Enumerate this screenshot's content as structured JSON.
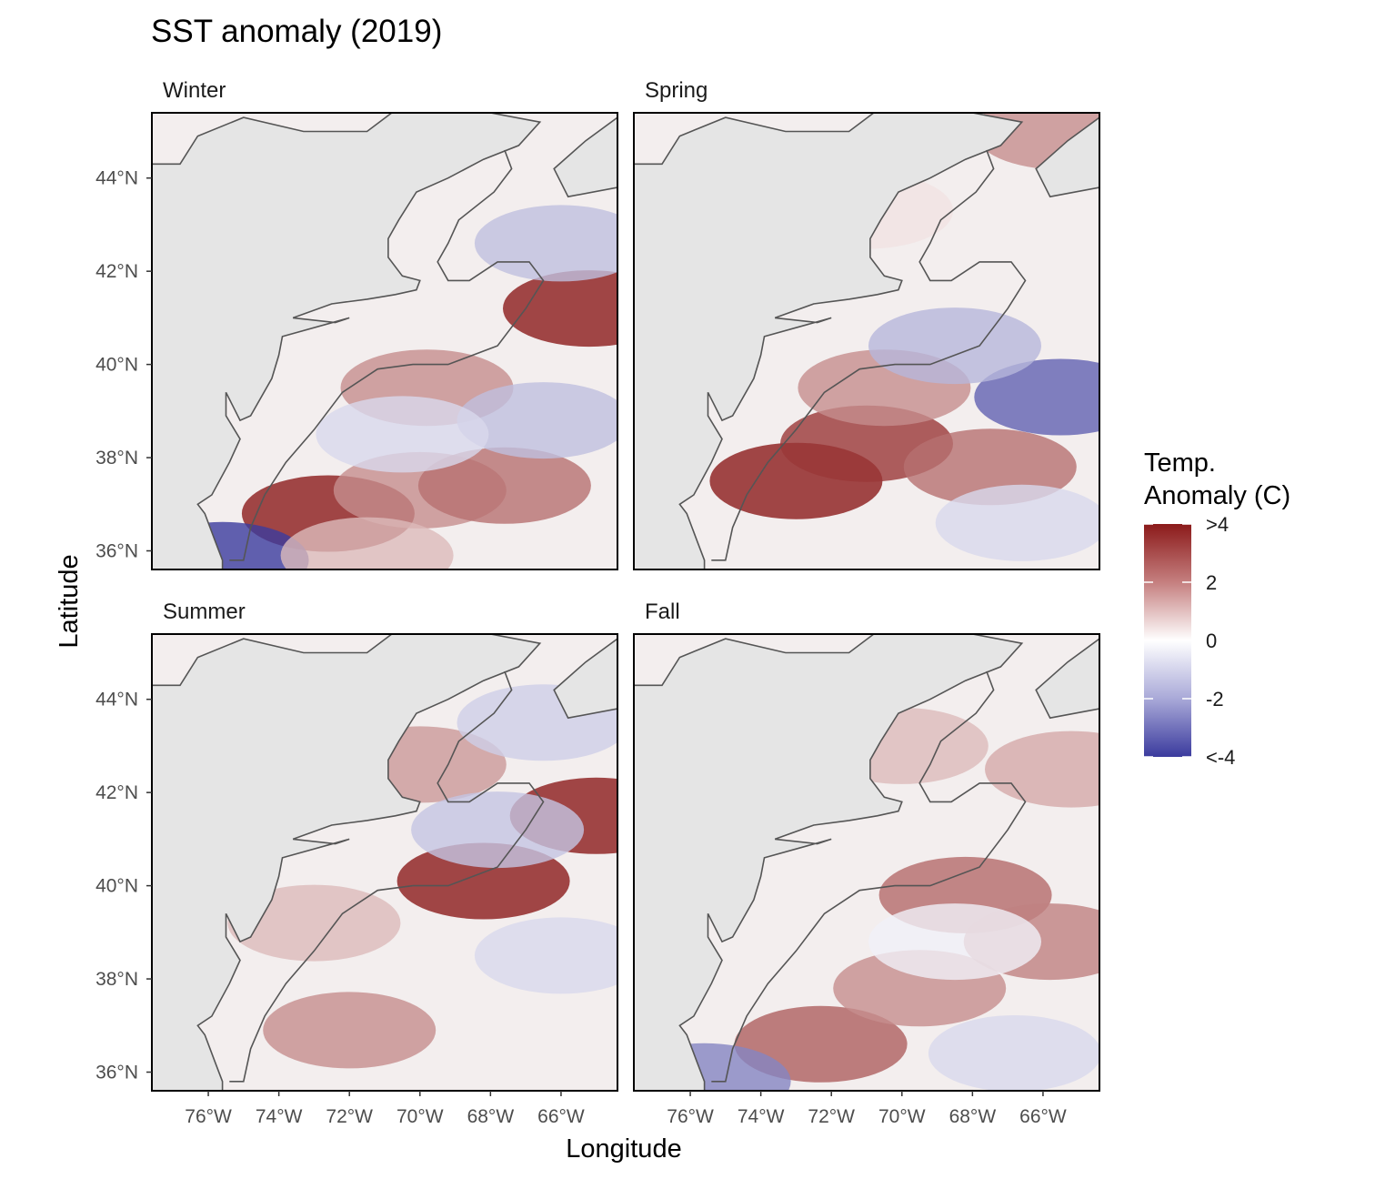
{
  "title": "SST anomaly (2019)",
  "x_axis_title": "Longitude",
  "y_axis_title": "Latitude",
  "panels": [
    {
      "label": "Winter"
    },
    {
      "label": "Spring"
    },
    {
      "label": "Summer"
    },
    {
      "label": "Fall"
    }
  ],
  "legend": {
    "title_line1": "Temp.",
    "title_line2": "Anomaly (C)",
    "labels": [
      ">4",
      "2",
      "0",
      "-2",
      "<-4"
    ],
    "values": [
      4,
      2,
      0,
      -2,
      -4
    ],
    "colors": {
      "high": "#8b1a1a",
      "mid": "#ffffff",
      "low": "#3b3b9e"
    }
  },
  "colors": {
    "land": "#e5e5e5",
    "coastline": "#555555",
    "panel_border": "#000000"
  },
  "chart_data": {
    "type": "heatmap",
    "title": "SST anomaly (2019)",
    "xlabel": "Longitude",
    "ylabel": "Latitude",
    "x_ticks": [
      "76°W",
      "74°W",
      "72°W",
      "70°W",
      "68°W",
      "66°W"
    ],
    "x_tick_values": [
      -76,
      -74,
      -72,
      -70,
      -68,
      -66
    ],
    "y_ticks": [
      "36°N",
      "38°N",
      "40°N",
      "42°N",
      "44°N"
    ],
    "y_tick_values": [
      36,
      38,
      40,
      42,
      44
    ],
    "xlim": [
      -77.6,
      -64.4
    ],
    "ylim": [
      35.6,
      45.4
    ],
    "color_range": [
      -4,
      4
    ],
    "facets": [
      "Winter",
      "Spring",
      "Summer",
      "Fall"
    ],
    "anomaly_features": [
      [
        {
          "lon": -72.6,
          "lat": 36.8,
          "value": 4.0
        },
        {
          "lon": -70.0,
          "lat": 37.3,
          "value": 2.0
        },
        {
          "lon": -67.6,
          "lat": 37.4,
          "value": 2.5
        },
        {
          "lon": -69.8,
          "lat": 39.5,
          "value": 2.0
        },
        {
          "lon": -65.2,
          "lat": 41.2,
          "value": 4.0
        },
        {
          "lon": -66.0,
          "lat": 42.6,
          "value": -1.3
        },
        {
          "lon": -66.5,
          "lat": 38.8,
          "value": -1.3
        },
        {
          "lon": -70.5,
          "lat": 38.5,
          "value": -0.8
        },
        {
          "lon": -75.6,
          "lat": 35.8,
          "value": -4.0
        },
        {
          "lon": -71.5,
          "lat": 35.9,
          "value": 1.2
        }
      ],
      [
        {
          "lon": -73.0,
          "lat": 37.5,
          "value": 4.0
        },
        {
          "lon": -71.0,
          "lat": 38.3,
          "value": 3.5
        },
        {
          "lon": -70.5,
          "lat": 39.5,
          "value": 2.0
        },
        {
          "lon": -67.5,
          "lat": 37.8,
          "value": 2.5
        },
        {
          "lon": -65.5,
          "lat": 39.3,
          "value": -3.2
        },
        {
          "lon": -68.5,
          "lat": 40.4,
          "value": -1.5
        },
        {
          "lon": -66.6,
          "lat": 36.6,
          "value": -0.8
        },
        {
          "lon": -65.5,
          "lat": 45.0,
          "value": 2.0
        },
        {
          "lon": -71.0,
          "lat": 43.3,
          "value": 0.5
        }
      ],
      [
        {
          "lon": -68.2,
          "lat": 40.1,
          "value": 4.0
        },
        {
          "lon": -65.0,
          "lat": 41.5,
          "value": 4.0
        },
        {
          "lon": -70.0,
          "lat": 42.6,
          "value": 1.8
        },
        {
          "lon": -67.8,
          "lat": 41.2,
          "value": -1.2
        },
        {
          "lon": -72.0,
          "lat": 36.9,
          "value": 2.0
        },
        {
          "lon": -66.0,
          "lat": 38.5,
          "value": -0.8
        },
        {
          "lon": -66.5,
          "lat": 43.5,
          "value": -1.0
        },
        {
          "lon": -73.0,
          "lat": 39.2,
          "value": 1.2
        }
      ],
      [
        {
          "lon": -72.3,
          "lat": 36.6,
          "value": 2.8
        },
        {
          "lon": -69.5,
          "lat": 37.8,
          "value": 2.0
        },
        {
          "lon": -68.2,
          "lat": 39.8,
          "value": 2.6
        },
        {
          "lon": -65.8,
          "lat": 38.8,
          "value": 2.2
        },
        {
          "lon": -70.0,
          "lat": 43.0,
          "value": 1.2
        },
        {
          "lon": -68.5,
          "lat": 38.8,
          "value": -0.3
        },
        {
          "lon": -66.8,
          "lat": 36.4,
          "value": -0.8
        },
        {
          "lon": -75.6,
          "lat": 35.8,
          "value": -2.5
        },
        {
          "lon": -65.2,
          "lat": 42.5,
          "value": 1.5
        }
      ]
    ]
  }
}
